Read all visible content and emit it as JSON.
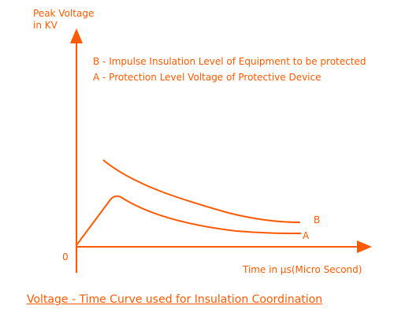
{
  "colors": {
    "accent": "#ff5a00",
    "background": "#ffffff"
  },
  "y_axis_label": {
    "line1": "Peak Voltage",
    "line2": "in KV"
  },
  "x_axis_label": "Time in µs(Micro Second)",
  "origin_label": "0",
  "legend": {
    "b": "B - Impulse Insulation Level of Equipment to be protected",
    "a": "A - Protection Level Voltage of Protective Device"
  },
  "curve_labels": {
    "b": "B",
    "a": "A"
  },
  "caption": "Voltage - Time Curve used for Insulation Coordination"
}
